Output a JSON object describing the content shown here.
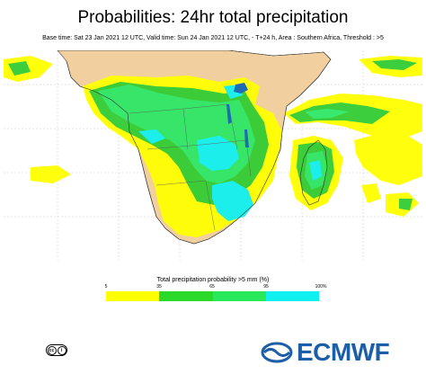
{
  "header": {
    "title": "Probabilities: 24hr total precipitation",
    "subtitle": "Base time: Sat 23 Jan 2021 12 UTC, Valid time: Sun 24 Jan 2021 12 UTC, - T+24 h, Area : Southern Africa, Threshold : >5"
  },
  "legend": {
    "title": "Total precipitation probability >5 mm (%)",
    "ticks": [
      "5",
      "35",
      "65",
      "95",
      "100%"
    ],
    "colors": [
      "#ffff00",
      "#2bd92b",
      "#29e85a",
      "#11f0f0"
    ]
  },
  "colors": {
    "land": "#f2cf9f",
    "ocean": "#ffffff",
    "prob_low": "#ffff00",
    "prob_mid": "#33cc33",
    "prob_high": "#33ee66",
    "prob_max": "#11f0f0",
    "brand": "#1c5fa8"
  },
  "footer": {
    "license_icon": "cc-by-icon",
    "brand": "ECMWF"
  }
}
